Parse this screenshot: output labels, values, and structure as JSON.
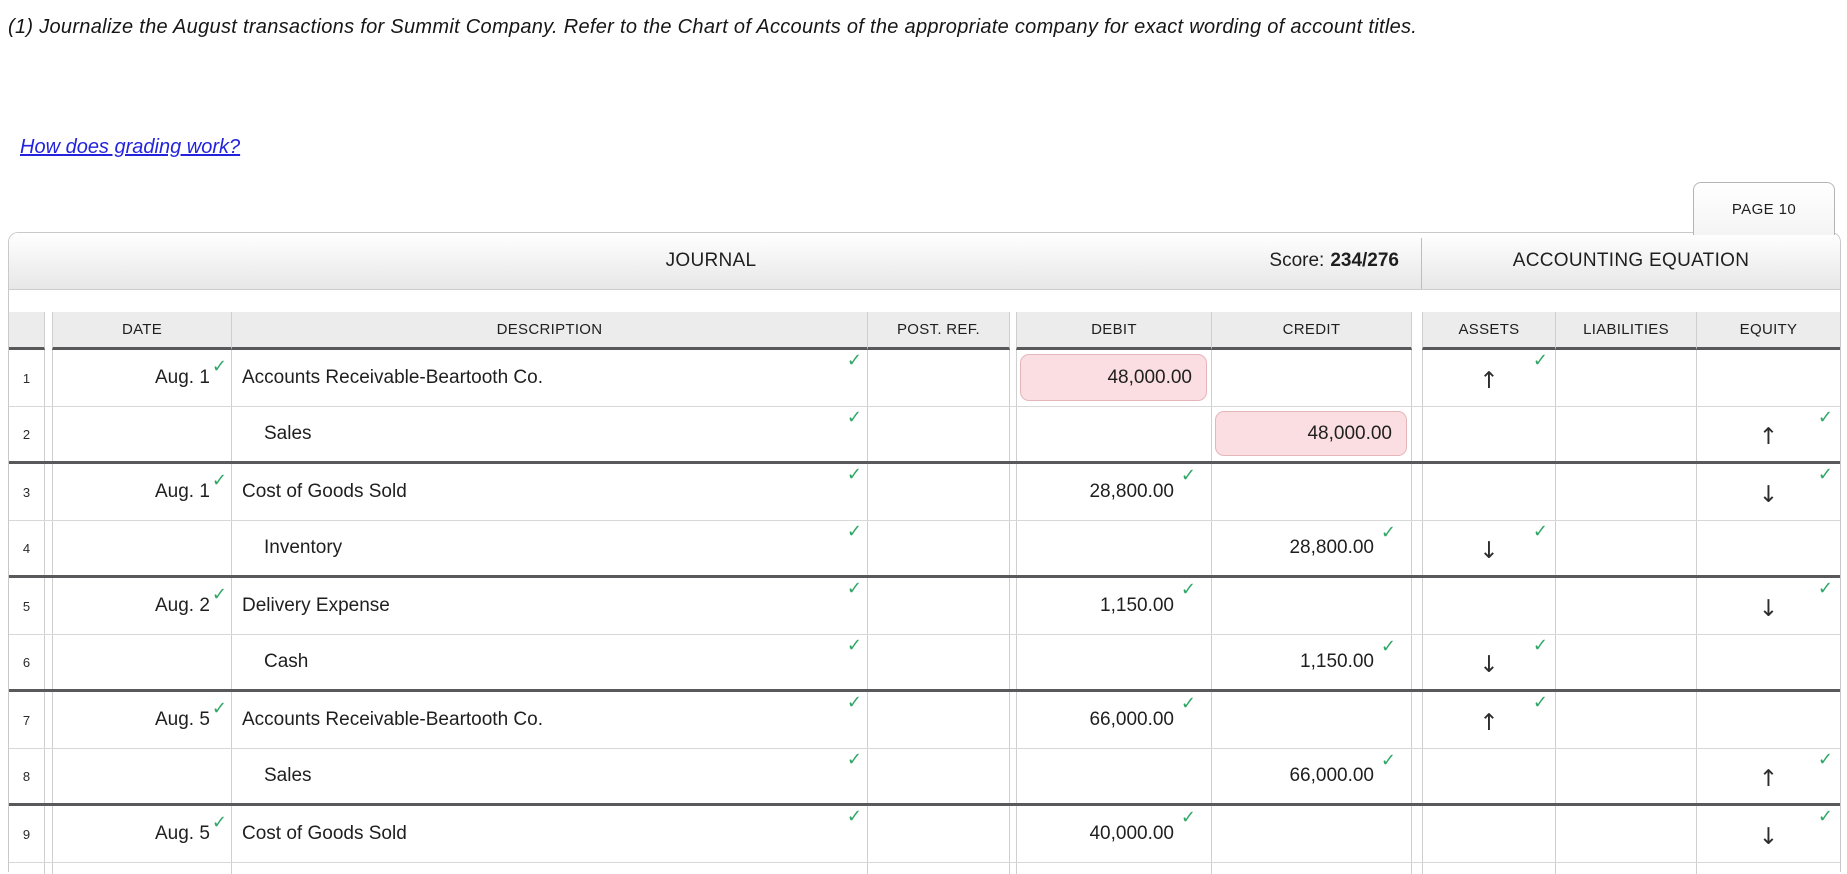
{
  "instruction": "(1) Journalize the August transactions for Summit Company. Refer to the Chart of Accounts of the appropriate company for exact wording of account titles.",
  "grading_link_label": "How does grading work?",
  "page_tab_label": "PAGE 10",
  "icons": {
    "check": "✓",
    "arrow_up": "↑",
    "arrow_down": "↓"
  },
  "colors": {
    "check_green": "#2fa766",
    "highlight_pink": "#fbdee2",
    "highlight_pink_border": "#e4b6ba",
    "link_blue": "#2323dd",
    "entry_divider": "#59595b"
  },
  "journal": {
    "title": "JOURNAL",
    "score_label": "Score:",
    "score_value": "234/276",
    "equation_title": "ACCOUNTING EQUATION",
    "columns": {
      "date": "DATE",
      "description": "DESCRIPTION",
      "post_ref": "POST. REF.",
      "debit": "DEBIT",
      "credit": "CREDIT",
      "assets": "ASSETS",
      "liabilities": "LIABILITIES",
      "equity": "EQUITY"
    },
    "rows": [
      {
        "num": "1",
        "date": "Aug. 1",
        "date_check": true,
        "description": "Accounts Receivable-Beartooth Co.",
        "indent": false,
        "desc_check": true,
        "post_ref": "",
        "debit": {
          "value": "48,000.00",
          "highlight": true,
          "check": false
        },
        "credit": {
          "value": "",
          "highlight": false,
          "check": false
        },
        "assets": {
          "arrow": "↑",
          "check": true
        },
        "liabilities": {
          "arrow": "",
          "check": false
        },
        "equity": {
          "arrow": "",
          "check": false
        },
        "entry_end": false
      },
      {
        "num": "2",
        "date": "",
        "date_check": false,
        "description": "Sales",
        "indent": true,
        "desc_check": true,
        "post_ref": "",
        "debit": {
          "value": "",
          "highlight": false,
          "check": false
        },
        "credit": {
          "value": "48,000.00",
          "highlight": true,
          "check": false
        },
        "assets": {
          "arrow": "",
          "check": false
        },
        "liabilities": {
          "arrow": "",
          "check": false
        },
        "equity": {
          "arrow": "↑",
          "check": true
        },
        "entry_end": true
      },
      {
        "num": "3",
        "date": "Aug. 1",
        "date_check": true,
        "description": "Cost of Goods Sold",
        "indent": false,
        "desc_check": true,
        "post_ref": "",
        "debit": {
          "value": "28,800.00",
          "highlight": false,
          "check": true
        },
        "credit": {
          "value": "",
          "highlight": false,
          "check": false
        },
        "assets": {
          "arrow": "",
          "check": false
        },
        "liabilities": {
          "arrow": "",
          "check": false
        },
        "equity": {
          "arrow": "↓",
          "check": true
        },
        "entry_end": false
      },
      {
        "num": "4",
        "date": "",
        "date_check": false,
        "description": "Inventory",
        "indent": true,
        "desc_check": true,
        "post_ref": "",
        "debit": {
          "value": "",
          "highlight": false,
          "check": false
        },
        "credit": {
          "value": "28,800.00",
          "highlight": false,
          "check": true
        },
        "assets": {
          "arrow": "↓",
          "check": true
        },
        "liabilities": {
          "arrow": "",
          "check": false
        },
        "equity": {
          "arrow": "",
          "check": false
        },
        "entry_end": true
      },
      {
        "num": "5",
        "date": "Aug. 2",
        "date_check": true,
        "description": "Delivery Expense",
        "indent": false,
        "desc_check": true,
        "post_ref": "",
        "debit": {
          "value": "1,150.00",
          "highlight": false,
          "check": true
        },
        "credit": {
          "value": "",
          "highlight": false,
          "check": false
        },
        "assets": {
          "arrow": "",
          "check": false
        },
        "liabilities": {
          "arrow": "",
          "check": false
        },
        "equity": {
          "arrow": "↓",
          "check": true
        },
        "entry_end": false
      },
      {
        "num": "6",
        "date": "",
        "date_check": false,
        "description": "Cash",
        "indent": true,
        "desc_check": true,
        "post_ref": "",
        "debit": {
          "value": "",
          "highlight": false,
          "check": false
        },
        "credit": {
          "value": "1,150.00",
          "highlight": false,
          "check": true
        },
        "assets": {
          "arrow": "↓",
          "check": true
        },
        "liabilities": {
          "arrow": "",
          "check": false
        },
        "equity": {
          "arrow": "",
          "check": false
        },
        "entry_end": true
      },
      {
        "num": "7",
        "date": "Aug. 5",
        "date_check": true,
        "description": "Accounts Receivable-Beartooth Co.",
        "indent": false,
        "desc_check": true,
        "post_ref": "",
        "debit": {
          "value": "66,000.00",
          "highlight": false,
          "check": true
        },
        "credit": {
          "value": "",
          "highlight": false,
          "check": false
        },
        "assets": {
          "arrow": "↑",
          "check": true
        },
        "liabilities": {
          "arrow": "",
          "check": false
        },
        "equity": {
          "arrow": "",
          "check": false
        },
        "entry_end": false
      },
      {
        "num": "8",
        "date": "",
        "date_check": false,
        "description": "Sales",
        "indent": true,
        "desc_check": true,
        "post_ref": "",
        "debit": {
          "value": "",
          "highlight": false,
          "check": false
        },
        "credit": {
          "value": "66,000.00",
          "highlight": false,
          "check": true
        },
        "assets": {
          "arrow": "",
          "check": false
        },
        "liabilities": {
          "arrow": "",
          "check": false
        },
        "equity": {
          "arrow": "↑",
          "check": true
        },
        "entry_end": true
      },
      {
        "num": "9",
        "date": "Aug. 5",
        "date_check": true,
        "description": "Cost of Goods Sold",
        "indent": false,
        "desc_check": true,
        "post_ref": "",
        "debit": {
          "value": "40,000.00",
          "highlight": false,
          "check": true
        },
        "credit": {
          "value": "",
          "highlight": false,
          "check": false
        },
        "assets": {
          "arrow": "",
          "check": false
        },
        "liabilities": {
          "arrow": "",
          "check": false
        },
        "equity": {
          "arrow": "↓",
          "check": true
        },
        "entry_end": false
      }
    ]
  }
}
